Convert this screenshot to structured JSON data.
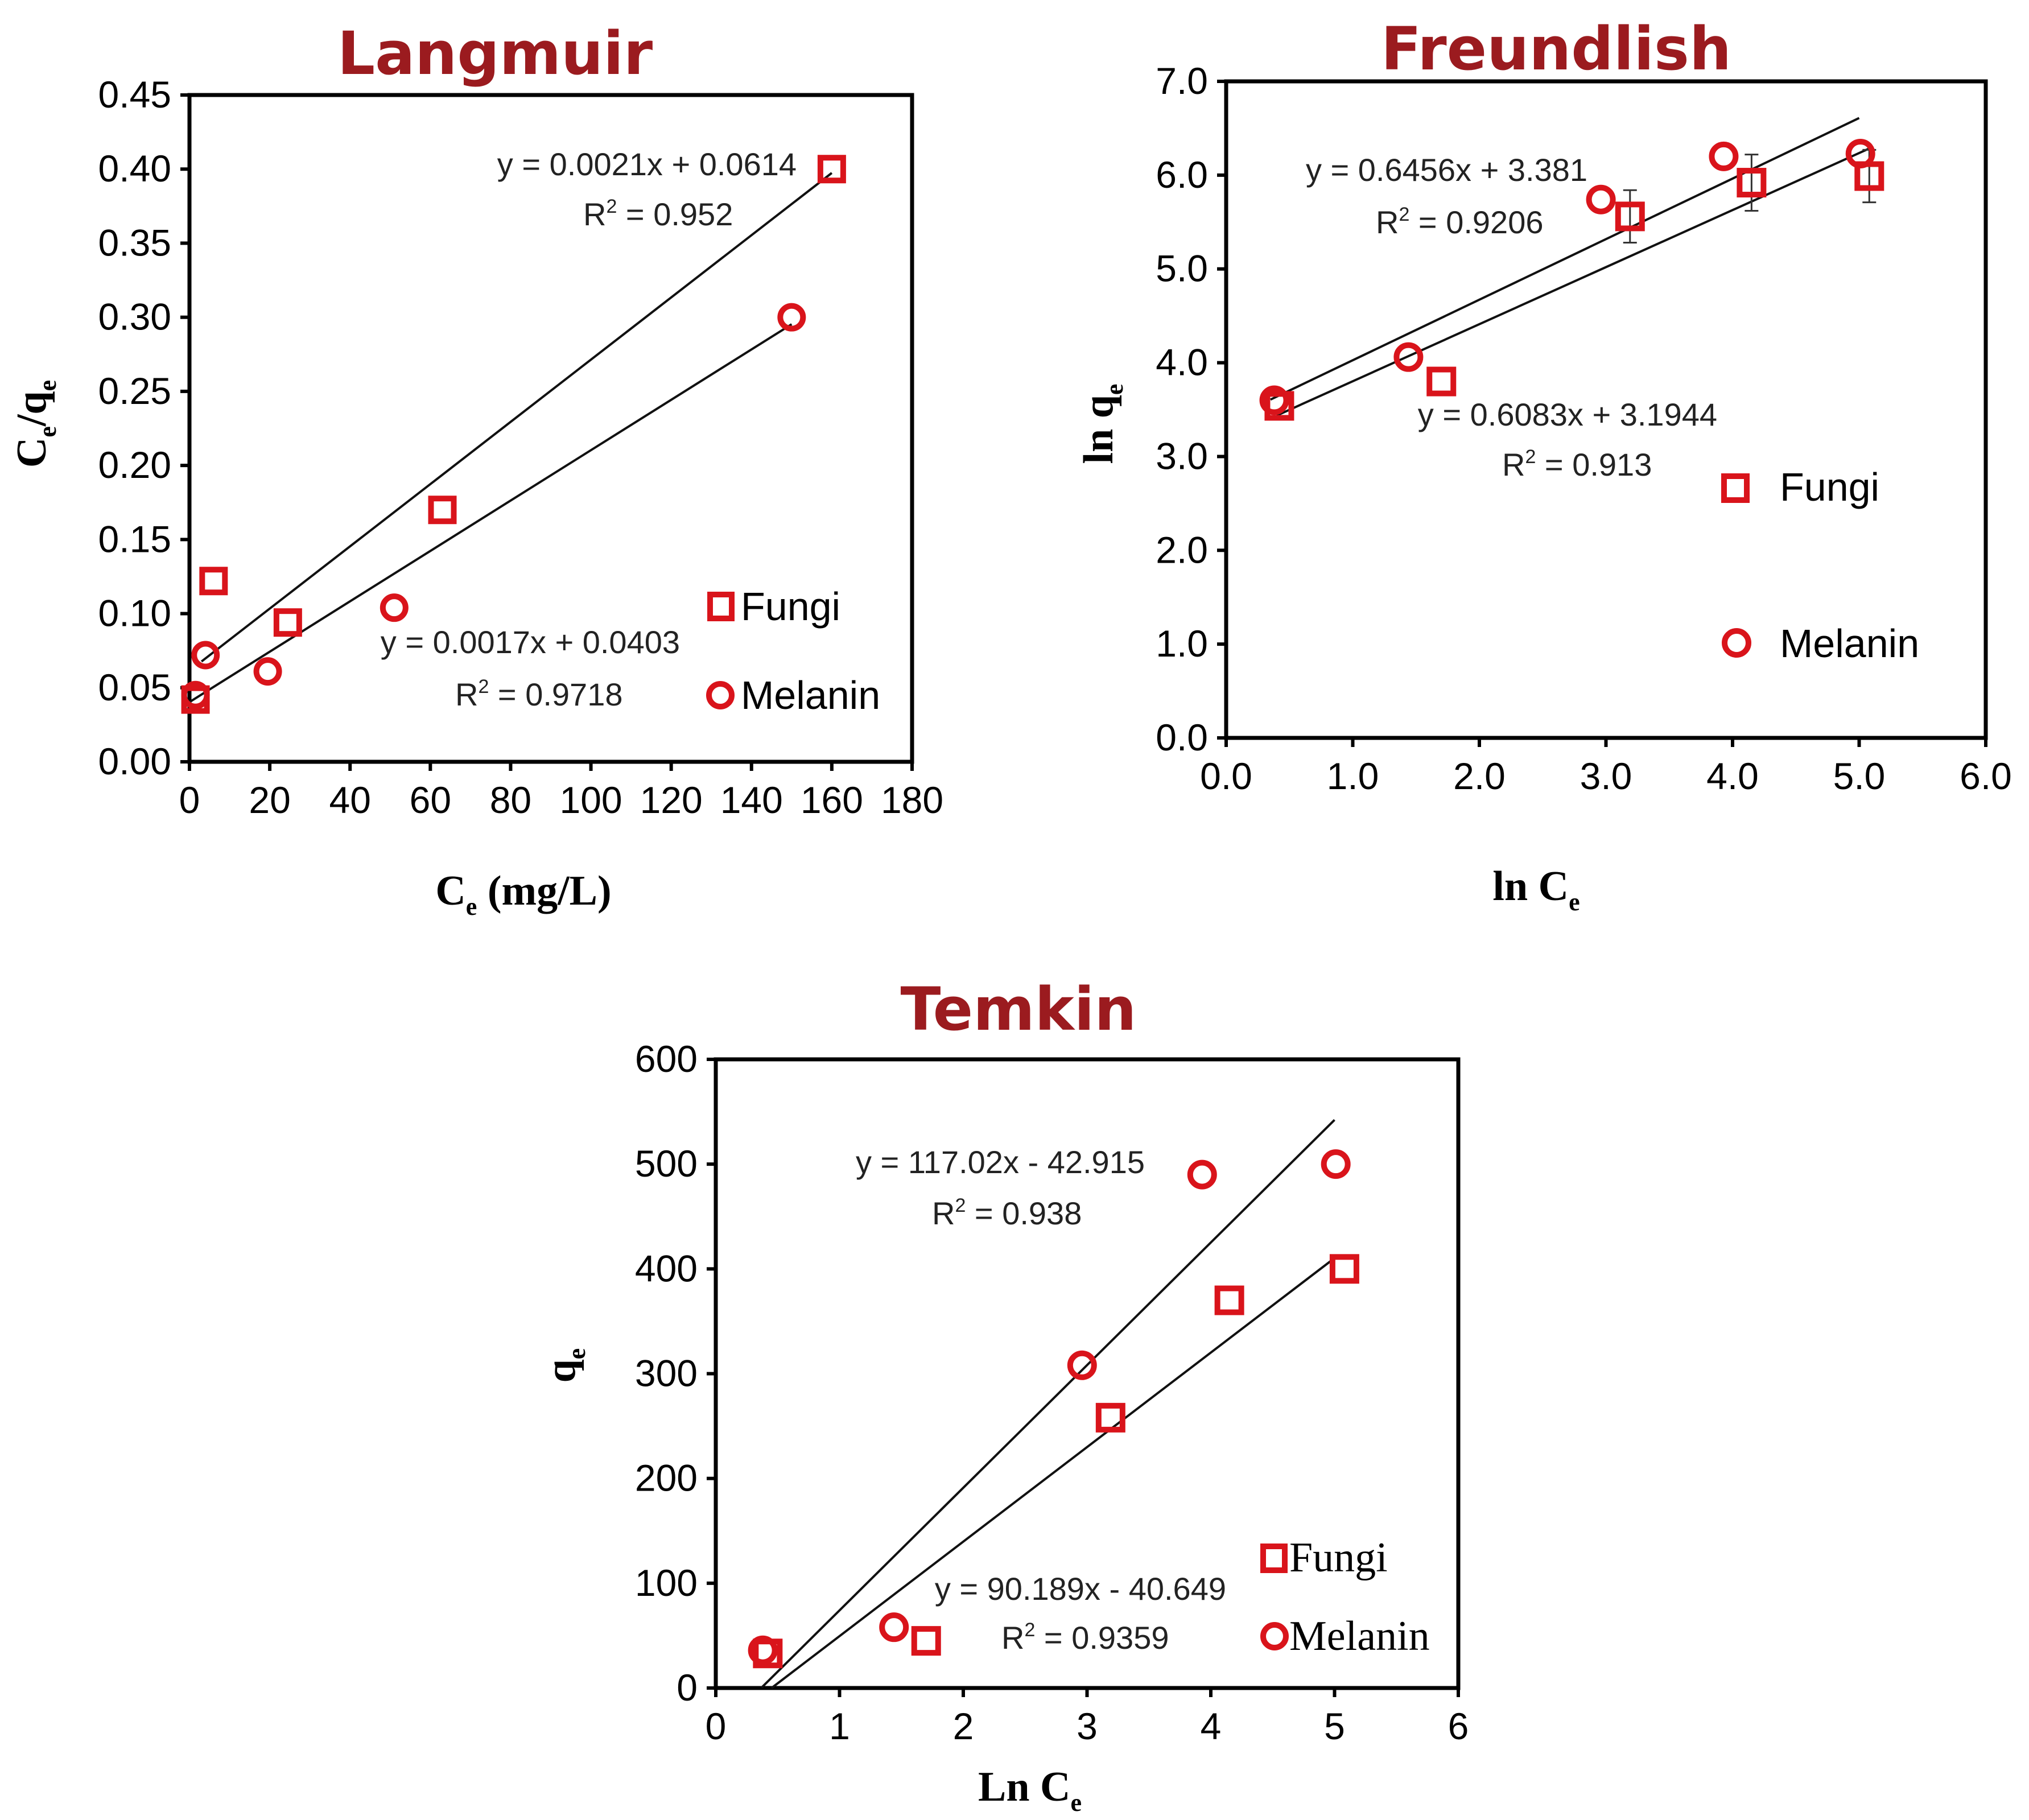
{
  "colors": {
    "marker": "#d9141b",
    "title": "#9b1b1f",
    "line": "#111111"
  },
  "chart_data": [
    {
      "type": "scatter",
      "title": "Langmuir",
      "xlabel": {
        "main": "C",
        "sub": "e",
        "rest": " (mg/L)"
      },
      "ylabel": {
        "main": "C",
        "sub1": "e",
        "mid": "/q",
        "sub2": "e"
      },
      "xlim": [
        0,
        180
      ],
      "ylim": [
        0,
        0.45
      ],
      "xticks": [
        0,
        20,
        40,
        60,
        80,
        100,
        120,
        140,
        160,
        180
      ],
      "xtick_labels": [
        "0",
        "20",
        "40",
        "60",
        "80",
        "100",
        "120",
        "140",
        "160",
        "180"
      ],
      "yticks": [
        0,
        0.05,
        0.1,
        0.15,
        0.2,
        0.25,
        0.3,
        0.35,
        0.4,
        0.45
      ],
      "ytick_labels": [
        "0.00",
        "0.05",
        "0.10",
        "0.15",
        "0.20",
        "0.25",
        "0.30",
        "0.35",
        "0.40",
        "0.45"
      ],
      "series": [
        {
          "name": "Fungi",
          "marker": "square",
          "x": [
            1.5,
            6,
            24.5,
            63,
            160
          ],
          "y": [
            0.042,
            0.122,
            0.094,
            0.17,
            0.4
          ],
          "fit": {
            "slope": 0.0021,
            "intercept": 0.0614,
            "x0": 3,
            "x1": 160,
            "equation": "y = 0.0021x + 0.0614",
            "r2_label": "R",
            "r2_value": " = 0.952"
          }
        },
        {
          "name": "Melanin",
          "marker": "circle",
          "x": [
            1.5,
            4,
            19.5,
            51,
            150
          ],
          "y": [
            0.045,
            0.072,
            0.061,
            0.104,
            0.3
          ],
          "fit": {
            "slope": 0.0017,
            "intercept": 0.0403,
            "x0": 0,
            "x1": 150,
            "equation": "y = 0.0017x + 0.0403",
            "r2_label": "R",
            "r2_value": " = 0.9718"
          }
        }
      ],
      "legend": [
        "Fungi",
        "Melanin"
      ]
    },
    {
      "type": "scatter",
      "title": "Freundlish",
      "xlabel": {
        "main": "ln C",
        "sub": "e",
        "rest": ""
      },
      "ylabel": {
        "main": "ln q",
        "sub": "e"
      },
      "xlim": [
        0,
        6
      ],
      "ylim": [
        0,
        7
      ],
      "xticks": [
        0,
        1,
        2,
        3,
        4,
        5,
        6
      ],
      "xtick_labels": [
        "0.0",
        "1.0",
        "2.0",
        "3.0",
        "4.0",
        "5.0",
        "6.0"
      ],
      "yticks": [
        0,
        1,
        2,
        3,
        4,
        5,
        6,
        7
      ],
      "ytick_labels": [
        "0.0",
        "1.0",
        "2.0",
        "3.0",
        "4.0",
        "5.0",
        "6.0",
        "7.0"
      ],
      "series": [
        {
          "name": "Fungi",
          "marker": "square",
          "x": [
            0.42,
            1.7,
            3.19,
            4.15,
            5.08
          ],
          "y": [
            3.54,
            3.8,
            5.56,
            5.92,
            5.99
          ],
          "err": [
            0,
            0,
            0.28,
            0.3,
            0.28
          ],
          "fit": {
            "slope": 0.6083,
            "intercept": 3.1944,
            "x0": 0.4,
            "x1": 5.1,
            "equation": "y = 0.6083x + 3.1944",
            "r2_label": "R",
            "r2_value": " = 0.913"
          }
        },
        {
          "name": "Melanin",
          "marker": "circle",
          "x": [
            0.38,
            1.44,
            2.96,
            3.93,
            5.01
          ],
          "y": [
            3.6,
            4.06,
            5.74,
            6.2,
            6.23
          ],
          "err": [
            0,
            0,
            0,
            0,
            0
          ],
          "fit": {
            "slope": 0.6456,
            "intercept": 3.381,
            "x0": 0.35,
            "x1": 5.0,
            "equation": "y = 0.6456x + 3.381",
            "r2_label": "R",
            "r2_value": " = 0.9206"
          }
        }
      ],
      "legend": [
        "Fungi",
        "Melanin"
      ]
    },
    {
      "type": "scatter",
      "title": "Temkin",
      "xlabel": {
        "main": "Ln C",
        "sub": "e",
        "rest": ""
      },
      "ylabel": {
        "main": "q",
        "sub": "e"
      },
      "xlim": [
        0,
        6
      ],
      "ylim": [
        0,
        600
      ],
      "xticks": [
        0,
        1,
        2,
        3,
        4,
        5,
        6
      ],
      "xtick_labels": [
        "0",
        "1",
        "2",
        "3",
        "4",
        "5",
        "6"
      ],
      "yticks": [
        0,
        100,
        200,
        300,
        400,
        500,
        600
      ],
      "ytick_labels": [
        "0",
        "100",
        "200",
        "300",
        "400",
        "500",
        "600"
      ],
      "series": [
        {
          "name": "Fungi",
          "marker": "square",
          "x": [
            0.42,
            1.7,
            3.19,
            4.15,
            5.08
          ],
          "y": [
            33,
            45,
            258,
            370,
            400
          ],
          "fit": {
            "slope": 90.189,
            "intercept": -40.649,
            "x0": 0.45,
            "x1": 5.0,
            "equation": "y = 90.189x - 40.649",
            "r2_label": "R",
            "r2_value": " = 0.9359"
          }
        },
        {
          "name": "Melanin",
          "marker": "circle",
          "x": [
            0.38,
            1.44,
            2.96,
            3.93,
            5.01
          ],
          "y": [
            36,
            58,
            308,
            490,
            500
          ],
          "fit": {
            "slope": 117.02,
            "intercept": -42.915,
            "x0": 0.37,
            "x1": 5.0,
            "equation": "y = 117.02x - 42.915",
            "r2_label": "R",
            "r2_value": " = 0.938"
          }
        }
      ],
      "legend": [
        "Fungi",
        "Melanin"
      ]
    }
  ]
}
